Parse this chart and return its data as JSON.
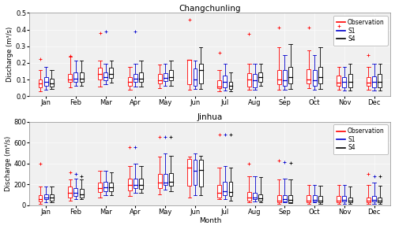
{
  "title_top": "Changchunling",
  "title_bottom": "Jinhua",
  "xlabel": "Month",
  "ylabel_top": "Discharge (m³/s)",
  "ylabel_bottom": "Discharge (m³/s)",
  "months": [
    "Jan",
    "Feb",
    "Mar",
    "Apr",
    "May",
    "Jun",
    "Jul",
    "Aug",
    "Sep",
    "Oct",
    "Nov",
    "Dec"
  ],
  "colors": {
    "obs": "#FF0000",
    "s1": "#0000CD",
    "s4": "#000000"
  },
  "legend_labels": [
    "Observation",
    "S1",
    "S4"
  ],
  "ccl": {
    "obs": {
      "whislo": [
        0.03,
        0.055,
        0.06,
        0.04,
        0.05,
        0.04,
        0.03,
        0.04,
        0.04,
        0.05,
        0.04,
        0.04
      ],
      "q1": [
        0.055,
        0.085,
        0.1,
        0.065,
        0.075,
        0.07,
        0.048,
        0.06,
        0.07,
        0.075,
        0.065,
        0.065
      ],
      "med": [
        0.075,
        0.1,
        0.135,
        0.085,
        0.095,
        0.22,
        0.06,
        0.1,
        0.1,
        0.1,
        0.082,
        0.082
      ],
      "q3": [
        0.1,
        0.135,
        0.17,
        0.115,
        0.135,
        0.22,
        0.095,
        0.14,
        0.155,
        0.16,
        0.125,
        0.115
      ],
      "whishi": [
        0.155,
        0.235,
        0.215,
        0.175,
        0.19,
        0.22,
        0.155,
        0.195,
        0.295,
        0.275,
        0.175,
        0.175
      ],
      "fliers_hi": [
        0.225,
        0.24,
        0.38,
        null,
        null,
        0.46,
        0.26,
        0.375,
        0.41,
        0.41,
        0.42,
        0.245
      ],
      "fliers_lo": [
        null,
        null,
        null,
        null,
        null,
        null,
        null,
        null,
        null,
        null,
        null,
        null
      ]
    },
    "s1": {
      "whislo": [
        0.04,
        0.065,
        0.07,
        0.06,
        0.065,
        0.045,
        0.035,
        0.04,
        0.04,
        0.04,
        0.035,
        0.035
      ],
      "q1": [
        0.065,
        0.085,
        0.095,
        0.085,
        0.09,
        0.065,
        0.055,
        0.055,
        0.065,
        0.065,
        0.055,
        0.055
      ],
      "med": [
        0.085,
        0.105,
        0.115,
        0.105,
        0.11,
        0.1,
        0.085,
        0.095,
        0.095,
        0.095,
        0.085,
        0.085
      ],
      "q3": [
        0.115,
        0.145,
        0.145,
        0.135,
        0.14,
        0.165,
        0.125,
        0.135,
        0.155,
        0.155,
        0.115,
        0.12
      ],
      "whishi": [
        0.175,
        0.215,
        0.195,
        0.195,
        0.195,
        0.215,
        0.195,
        0.195,
        0.245,
        0.245,
        0.175,
        0.195
      ],
      "fliers_hi": [
        null,
        null,
        0.39,
        0.39,
        null,
        null,
        null,
        null,
        null,
        null,
        null,
        null
      ],
      "fliers_lo": [
        null,
        null,
        null,
        null,
        null,
        null,
        null,
        null,
        null,
        null,
        null,
        null
      ]
    },
    "s4": {
      "whislo": [
        0.045,
        0.065,
        0.08,
        0.06,
        0.065,
        0.045,
        0.03,
        0.065,
        0.045,
        0.045,
        0.035,
        0.035
      ],
      "q1": [
        0.06,
        0.085,
        0.11,
        0.085,
        0.095,
        0.075,
        0.045,
        0.085,
        0.075,
        0.075,
        0.055,
        0.055
      ],
      "med": [
        0.075,
        0.105,
        0.135,
        0.105,
        0.115,
        0.155,
        0.065,
        0.115,
        0.115,
        0.115,
        0.085,
        0.085
      ],
      "q3": [
        0.105,
        0.145,
        0.17,
        0.145,
        0.155,
        0.195,
        0.085,
        0.145,
        0.175,
        0.175,
        0.135,
        0.135
      ],
      "whishi": [
        0.155,
        0.215,
        0.215,
        0.215,
        0.215,
        0.295,
        0.145,
        0.195,
        0.315,
        0.295,
        0.195,
        0.195
      ],
      "fliers_hi": [
        null,
        null,
        null,
        null,
        null,
        null,
        null,
        null,
        null,
        null,
        null,
        null
      ],
      "fliers_lo": [
        null,
        null,
        null,
        null,
        null,
        null,
        null,
        null,
        null,
        null,
        null,
        null
      ]
    }
  },
  "jh": {
    "obs": {
      "whislo": [
        15,
        45,
        75,
        90,
        100,
        75,
        55,
        25,
        15,
        15,
        15,
        15
      ],
      "q1": [
        35,
        75,
        125,
        140,
        165,
        185,
        75,
        45,
        25,
        25,
        25,
        25
      ],
      "med": [
        55,
        115,
        165,
        195,
        215,
        355,
        115,
        75,
        45,
        45,
        45,
        45
      ],
      "q3": [
        95,
        175,
        215,
        255,
        295,
        445,
        195,
        125,
        95,
        95,
        85,
        75
      ],
      "whishi": [
        175,
        245,
        325,
        375,
        465,
        465,
        355,
        275,
        245,
        195,
        195,
        195
      ],
      "fliers_hi": [
        395,
        315,
        null,
        555,
        655,
        null,
        675,
        395,
        425,
        null,
        null,
        295
      ],
      "fliers_lo": [
        null,
        null,
        null,
        null,
        null,
        null,
        null,
        null,
        null,
        null,
        null,
        null
      ]
    },
    "s1": {
      "whislo": [
        25,
        55,
        95,
        115,
        145,
        95,
        55,
        35,
        25,
        25,
        15,
        15
      ],
      "q1": [
        55,
        85,
        135,
        165,
        195,
        195,
        95,
        55,
        35,
        35,
        35,
        35
      ],
      "med": [
        75,
        115,
        170,
        195,
        215,
        325,
        135,
        75,
        55,
        50,
        50,
        50
      ],
      "q3": [
        105,
        165,
        220,
        255,
        295,
        435,
        225,
        115,
        95,
        95,
        85,
        85
      ],
      "whishi": [
        175,
        255,
        325,
        395,
        495,
        495,
        375,
        275,
        255,
        195,
        195,
        215
      ],
      "fliers_hi": [
        null,
        295,
        null,
        555,
        655,
        null,
        675,
        null,
        415,
        null,
        null,
        275
      ],
      "fliers_lo": [
        null,
        null,
        null,
        null,
        null,
        null,
        null,
        null,
        null,
        null,
        null,
        null
      ]
    },
    "s4": {
      "whislo": [
        25,
        55,
        95,
        115,
        135,
        95,
        45,
        25,
        20,
        15,
        15,
        15
      ],
      "q1": [
        45,
        75,
        135,
        155,
        185,
        175,
        85,
        45,
        30,
        30,
        25,
        25
      ],
      "med": [
        70,
        105,
        170,
        195,
        225,
        335,
        125,
        65,
        50,
        45,
        45,
        45
      ],
      "q3": [
        105,
        155,
        215,
        255,
        305,
        435,
        225,
        105,
        95,
        85,
        75,
        75
      ],
      "whishi": [
        175,
        245,
        315,
        375,
        475,
        475,
        355,
        265,
        245,
        185,
        180,
        185
      ],
      "fliers_hi": [
        null,
        275,
        null,
        null,
        655,
        null,
        675,
        null,
        405,
        null,
        null,
        275
      ],
      "fliers_lo": [
        null,
        null,
        null,
        null,
        null,
        null,
        null,
        null,
        null,
        null,
        null,
        null
      ]
    }
  },
  "ccl_ylim": [
    0,
    0.5
  ],
  "jh_ylim": [
    0,
    800
  ],
  "ccl_yticks": [
    0,
    0.1,
    0.2,
    0.3,
    0.4,
    0.5
  ],
  "jh_yticks": [
    0,
    200,
    400,
    600,
    800
  ],
  "fig_width": 5.0,
  "fig_height": 2.91,
  "dpi": 100,
  "bg_color": "#f0f0f0"
}
